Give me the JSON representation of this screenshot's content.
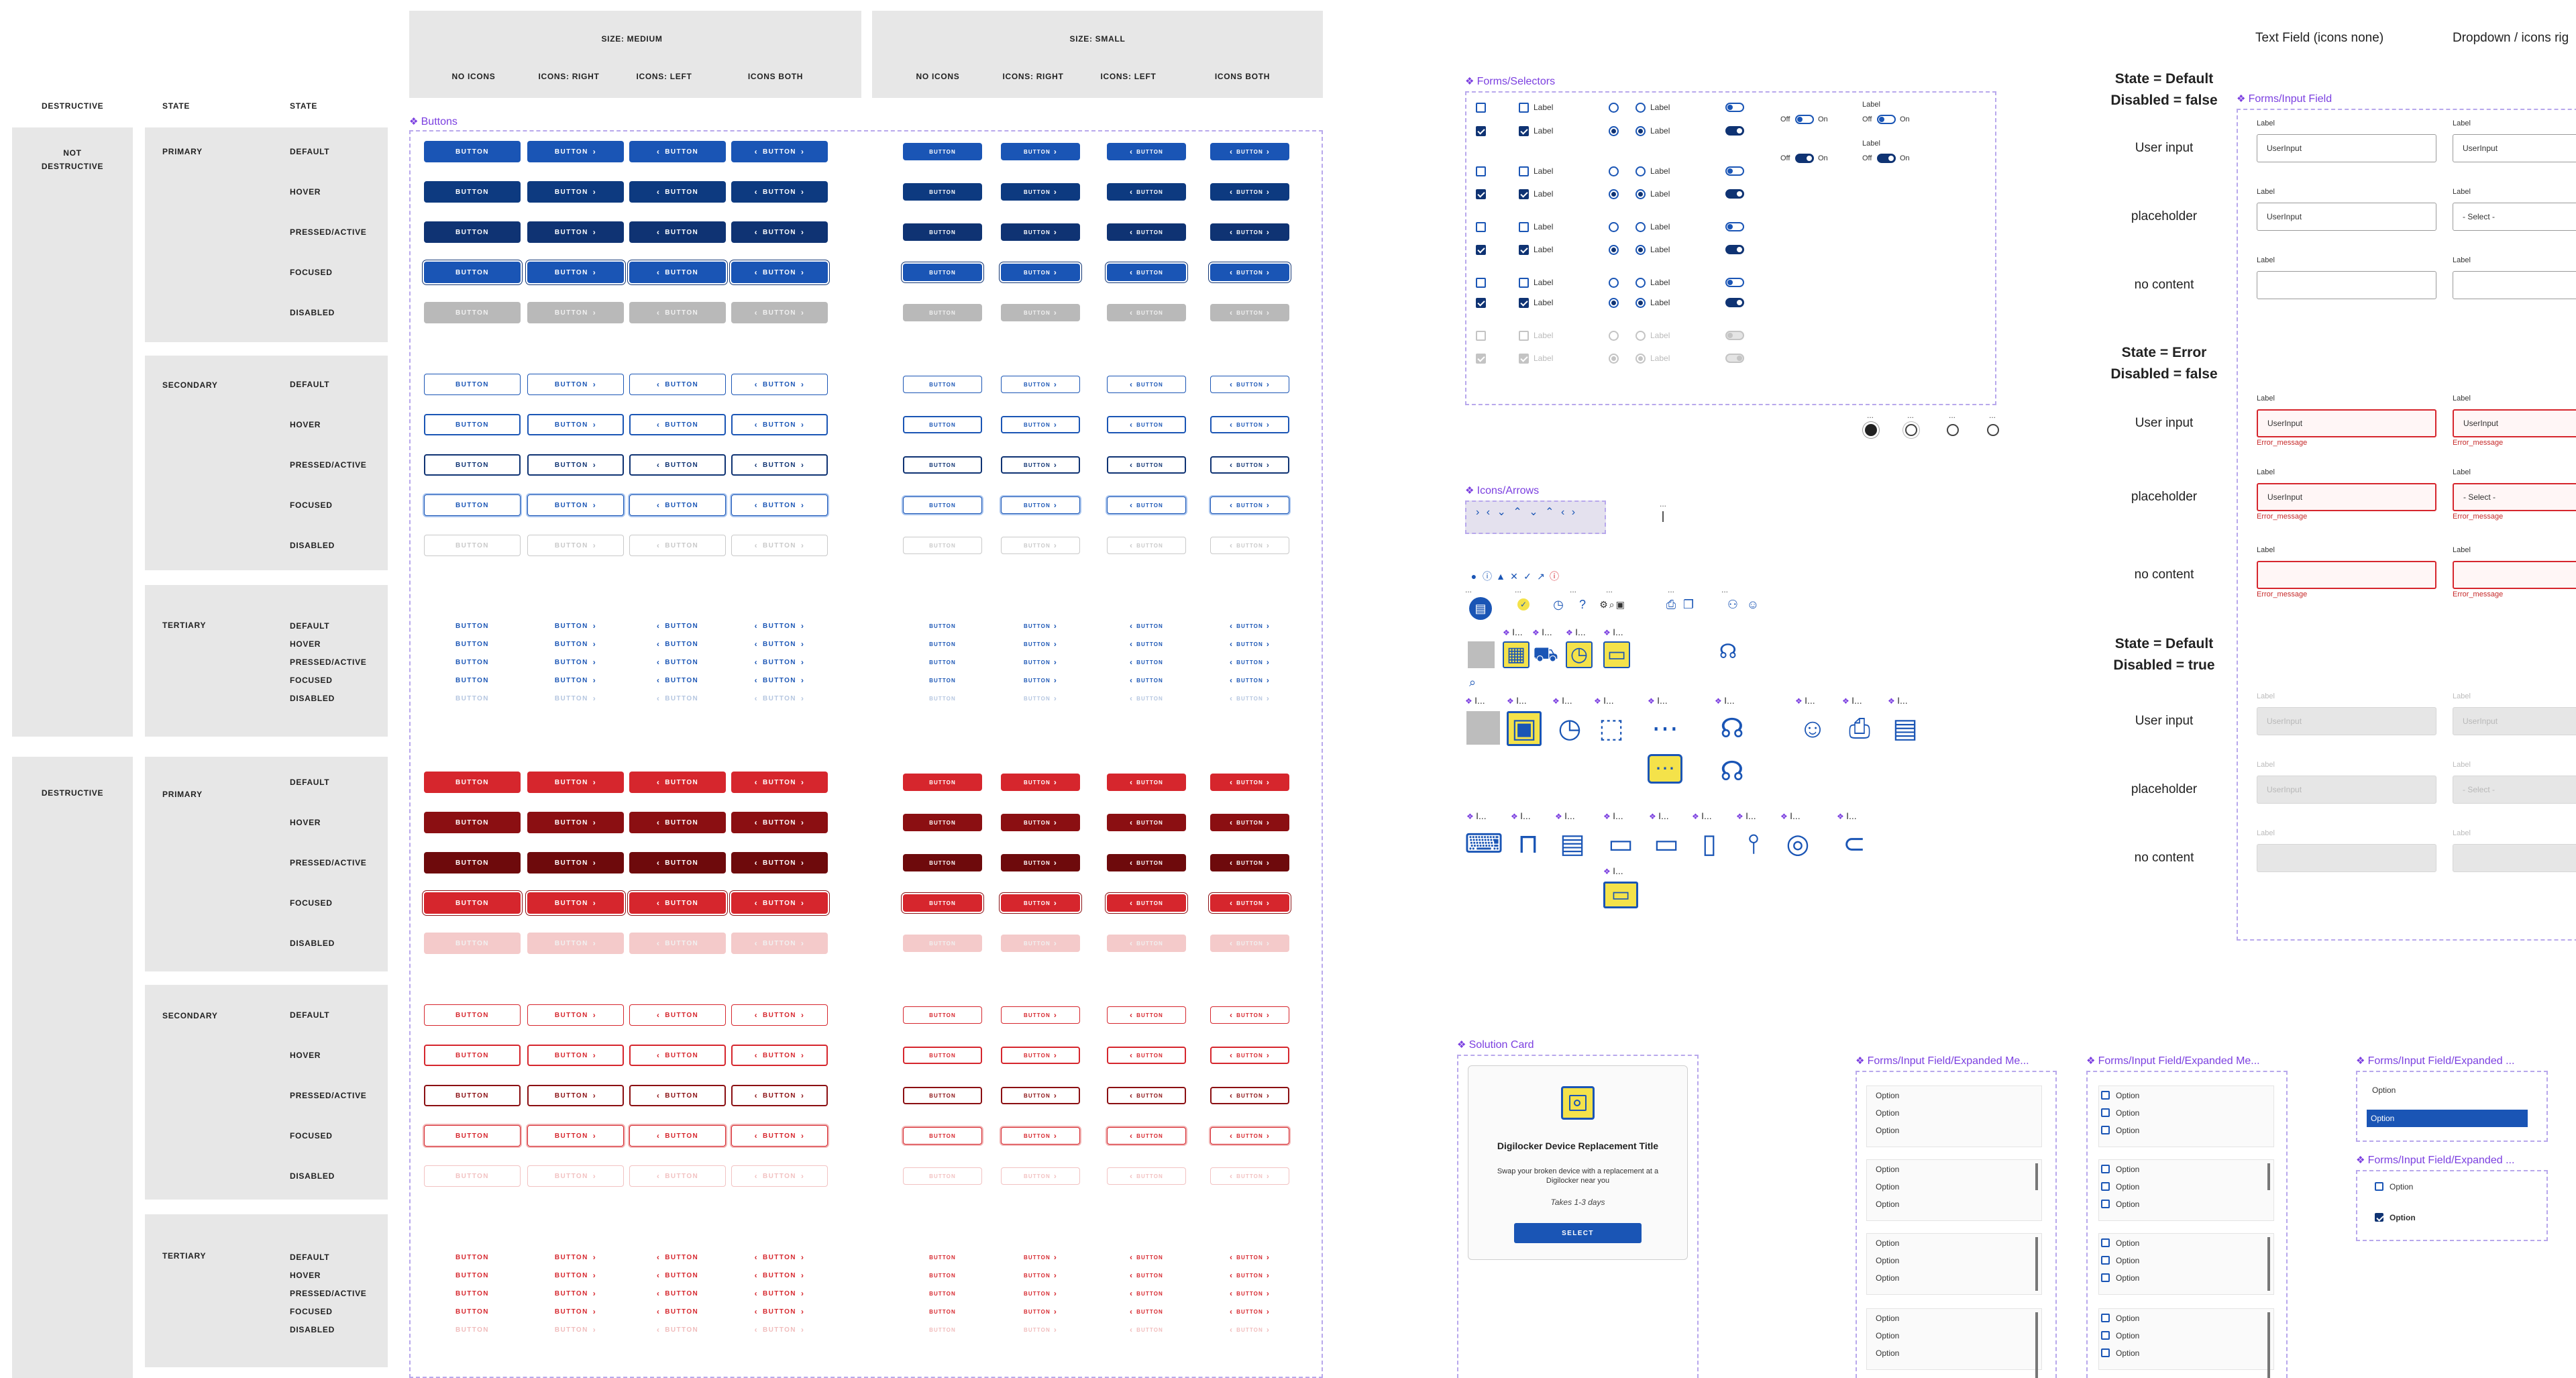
{
  "colors": {
    "primary": "#1a55b5",
    "primary_dark": "#0f3373",
    "primary_hover": "#0d3a80",
    "disabled": "#b9b9b9",
    "danger": "#d6262d",
    "danger_dark": "#8b0f12",
    "danger_disabled": "#f4caca",
    "accent_purple": "#7b3fe0",
    "panel_gray": "#e7e7e7",
    "icon_yellow": "#f4e24a"
  },
  "button_text": "BUTTON",
  "arrows": {
    "right": "›",
    "left": "‹"
  },
  "left_headers": {
    "destructive": "DESTRUCTIVE",
    "state": "STATE",
    "state2": "STATE"
  },
  "destructive_groups": [
    "NOT DESTRUCTIVE",
    "DESTRUCTIVE"
  ],
  "hierarchy": [
    "PRIMARY",
    "SECONDARY",
    "TERTIARY"
  ],
  "states": [
    "DEFAULT",
    "HOVER",
    "PRESSED/ACTIVE",
    "FOCUSED",
    "DISABLED"
  ],
  "size_headers": {
    "medium": "SIZE: MEDIUM",
    "small": "SIZE: SMALL"
  },
  "icon_columns": [
    "NO ICONS",
    "ICONS: RIGHT",
    "ICONS: LEFT",
    "ICONS BOTH"
  ],
  "frames": {
    "buttons": "Buttons",
    "forms_selectors": "Forms/Selectors",
    "icons_arrows": "Icons/Arrows",
    "input_field": "Forms/Input Field",
    "solution_card": "Solution Card",
    "expanded_1": "Forms/Input Field/Expanded Me...",
    "expanded_2": "Forms/Input Field/Expanded Me...",
    "expanded_3": "Forms/Input Field/Expanded ...",
    "expanded_4": "Forms/Input Field/Expanded ..."
  },
  "selectors": {
    "label": "Label",
    "off": "Off",
    "on": "On",
    "toggle_label": "Label"
  },
  "input_field": {
    "col_headers": [
      "Text Field (icons none)",
      "Dropdown / icons rig"
    ],
    "state_headers": [
      {
        "line1": "State = Default",
        "line2": "Disabled = false"
      },
      {
        "line1": "State = Error",
        "line2": "Disabled = false"
      },
      {
        "line1": "State = Default",
        "line2": "Disabled = true"
      }
    ],
    "row_labels": [
      "User input",
      "placeholder",
      "no content"
    ],
    "label": "Label",
    "user_input": "UserInput",
    "select_placeholder": "- Select -",
    "error_message": "Error_message"
  },
  "icons": {
    "arrow_row": "› ‹ ⌄ ⌃ ⌄ ⌃ ‹ ›",
    "truncated_label": "I...",
    "ellipsis": "..."
  },
  "solution_card": {
    "title": "Digilocker Device Replacement Title",
    "description": "Swap your broken device with a replacement at a Digilocker near you",
    "duration": "Takes 1-3 days",
    "cta": "SELECT"
  },
  "dropdown": {
    "option": "Option"
  }
}
